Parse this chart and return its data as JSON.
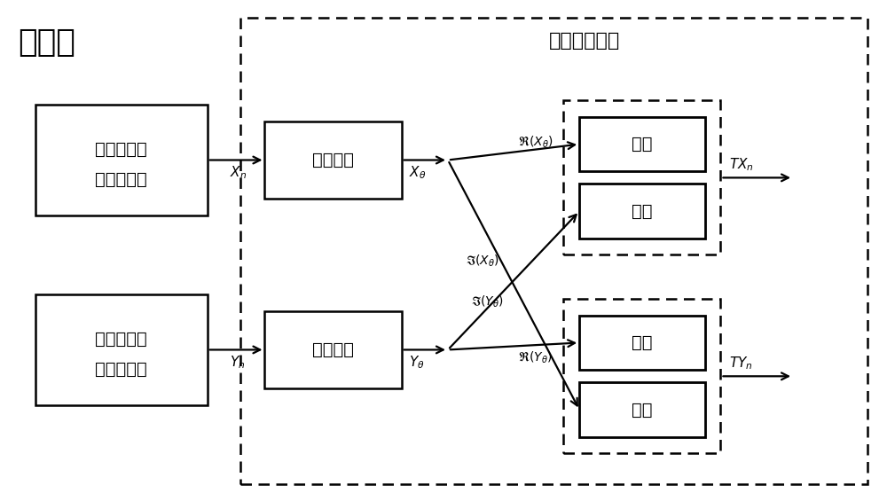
{
  "title_sender": "发送方",
  "title_encoding": "极化成对编码",
  "box1_line1": "第一量子随",
  "box1_line2": "机数发生器",
  "box2_text": "符号映射",
  "box3_line1": "第二量子随",
  "box3_line2": "机数发生器",
  "box4_text": "符号映射",
  "box5_text": "实部",
  "box6_text": "虚部",
  "box7_text": "实部",
  "box8_text": "虚部",
  "bg_color": "#ffffff"
}
